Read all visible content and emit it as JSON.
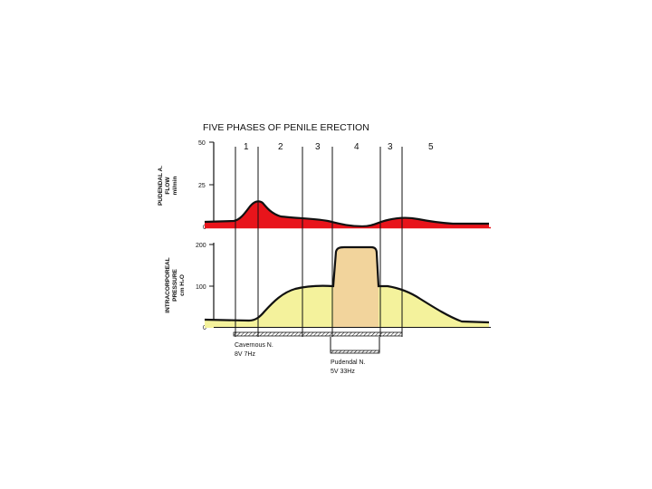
{
  "figure": {
    "title": "FIVE  PHASES OF PENILE  ERECTION",
    "phase_labels": [
      "1",
      "2",
      "3",
      "4",
      "3",
      "5"
    ]
  },
  "top_panel": {
    "ylabel_lines": [
      "PUDENDAL A.",
      "FLOW",
      "ml/min"
    ],
    "ticks": [
      "50",
      "25",
      "0"
    ]
  },
  "bottom_panel": {
    "ylabel_lines": [
      "INTRACORPOREAL",
      "PRESSURE",
      "cm H₂O"
    ],
    "ticks": [
      "200",
      "100",
      "0"
    ]
  },
  "stimuli": {
    "cavernous": {
      "line1": "Cavernous N.",
      "line2": "8V 7Hz"
    },
    "pudendal": {
      "line1": "Pudendal N.",
      "line2": "5V 33Hz"
    }
  },
  "colors": {
    "flow_fill": "#e8141b",
    "pressure_fill": "#f4f29c",
    "pressure_peak_fill": "#f2d49c",
    "curve": "#111111"
  }
}
